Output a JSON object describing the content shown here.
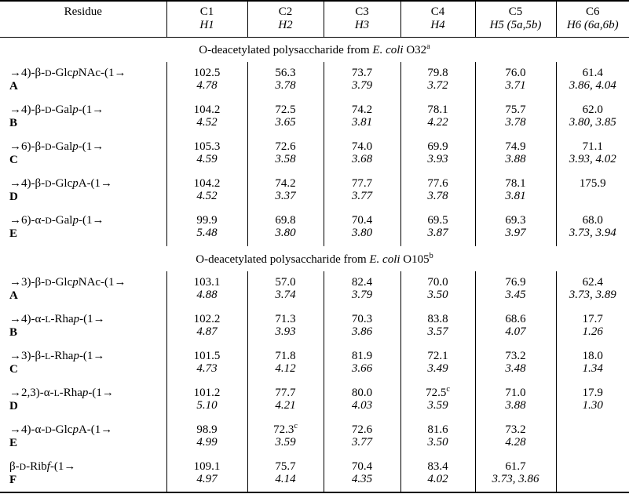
{
  "table": {
    "columns": [
      {
        "c": "Residue",
        "h": ""
      },
      {
        "c": "C1",
        "h": "H1"
      },
      {
        "c": "C2",
        "h": "H2"
      },
      {
        "c": "C3",
        "h": "H3"
      },
      {
        "c": "C4",
        "h": "H4"
      },
      {
        "c": "C5",
        "h": "H5 (5a,5b)"
      },
      {
        "c": "C6",
        "h": "H6 (6a,6b)"
      }
    ],
    "sections": [
      {
        "title": [
          {
            "t": "O-deacetylated polysaccharide from "
          },
          {
            "t": "E. coli",
            "style": "italic"
          },
          {
            "t": " O32"
          },
          {
            "t": "a",
            "style": "sup"
          }
        ],
        "rows": [
          {
            "residue": [
              {
                "t": "→4)-β-"
              },
              {
                "t": "D",
                "style": "smallcaps"
              },
              {
                "t": "-Glc"
              },
              {
                "t": "p",
                "style": "italic"
              },
              {
                "t": "NAc-(1→"
              }
            ],
            "label": "A",
            "cells": [
              {
                "c": "102.5",
                "h": "4.78"
              },
              {
                "c": "56.3",
                "h": "3.78"
              },
              {
                "c": "73.7",
                "h": "3.79"
              },
              {
                "c": "79.8",
                "h": "3.72"
              },
              {
                "c": "76.0",
                "h": "3.71"
              },
              {
                "c": "61.4",
                "h": "3.86, 4.04"
              }
            ]
          },
          {
            "residue": [
              {
                "t": "→4)-β-"
              },
              {
                "t": "D",
                "style": "smallcaps"
              },
              {
                "t": "-Gal"
              },
              {
                "t": "p",
                "style": "italic"
              },
              {
                "t": "-(1→"
              }
            ],
            "label": "B",
            "cells": [
              {
                "c": "104.2",
                "h": "4.52"
              },
              {
                "c": "72.5",
                "h": "3.65"
              },
              {
                "c": "74.2",
                "h": "3.81"
              },
              {
                "c": "78.1",
                "h": "4.22"
              },
              {
                "c": "75.7",
                "h": "3.78"
              },
              {
                "c": "62.0",
                "h": "3.80, 3.85"
              }
            ]
          },
          {
            "residue": [
              {
                "t": "→6)-β-"
              },
              {
                "t": "D",
                "style": "smallcaps"
              },
              {
                "t": "-Gal"
              },
              {
                "t": "p",
                "style": "italic"
              },
              {
                "t": "-(1→"
              }
            ],
            "label": "C",
            "cells": [
              {
                "c": "105.3",
                "h": "4.59"
              },
              {
                "c": "72.6",
                "h": "3.58"
              },
              {
                "c": "74.0",
                "h": "3.68"
              },
              {
                "c": "69.9",
                "h": "3.93"
              },
              {
                "c": "74.9",
                "h": "3.88"
              },
              {
                "c": "71.1",
                "h": "3.93, 4.02"
              }
            ]
          },
          {
            "residue": [
              {
                "t": "→4)-β-"
              },
              {
                "t": "D",
                "style": "smallcaps"
              },
              {
                "t": "-Glc"
              },
              {
                "t": "p",
                "style": "italic"
              },
              {
                "t": "A-(1→"
              }
            ],
            "label": "D",
            "cells": [
              {
                "c": "104.2",
                "h": "4.52"
              },
              {
                "c": "74.2",
                "h": "3.37"
              },
              {
                "c": "77.7",
                "h": "3.77"
              },
              {
                "c": "77.6",
                "h": "3.78"
              },
              {
                "c": "78.1",
                "h": "3.81"
              },
              {
                "c": "175.9",
                "h": ""
              }
            ]
          },
          {
            "residue": [
              {
                "t": "→6)-α-"
              },
              {
                "t": "D",
                "style": "smallcaps"
              },
              {
                "t": "-Gal"
              },
              {
                "t": "p",
                "style": "italic"
              },
              {
                "t": "-(1→"
              }
            ],
            "label": "E",
            "cells": [
              {
                "c": "99.9",
                "h": "5.48"
              },
              {
                "c": "69.8",
                "h": "3.80"
              },
              {
                "c": "70.4",
                "h": "3.80"
              },
              {
                "c": "69.5",
                "h": "3.87"
              },
              {
                "c": "69.3",
                "h": "3.97"
              },
              {
                "c": "68.0",
                "h": "3.73, 3.94"
              }
            ]
          }
        ]
      },
      {
        "title": [
          {
            "t": "O-deacetylated polysaccharide from "
          },
          {
            "t": "E. coli",
            "style": "italic"
          },
          {
            "t": " O105"
          },
          {
            "t": "b",
            "style": "sup"
          }
        ],
        "rows": [
          {
            "residue": [
              {
                "t": "→3)-β-"
              },
              {
                "t": "D",
                "style": "smallcaps"
              },
              {
                "t": "-Glc"
              },
              {
                "t": "p",
                "style": "italic"
              },
              {
                "t": "NAc-(1→"
              }
            ],
            "label": "A",
            "cells": [
              {
                "c": "103.1",
                "h": "4.88"
              },
              {
                "c": "57.0",
                "h": "3.74"
              },
              {
                "c": "82.4",
                "h": "3.79"
              },
              {
                "c": "70.0",
                "h": "3.50"
              },
              {
                "c": "76.9",
                "h": "3.45"
              },
              {
                "c": "62.4",
                "h": "3.73, 3.89"
              }
            ]
          },
          {
            "residue": [
              {
                "t": "→4)-α-"
              },
              {
                "t": "L",
                "style": "smallcaps"
              },
              {
                "t": "-Rha"
              },
              {
                "t": "p",
                "style": "italic"
              },
              {
                "t": "-(1→"
              }
            ],
            "label": "B",
            "cells": [
              {
                "c": "102.2",
                "h": "4.87"
              },
              {
                "c": "71.3",
                "h": "3.93"
              },
              {
                "c": "70.3",
                "h": "3.86"
              },
              {
                "c": "83.8",
                "h": "3.57"
              },
              {
                "c": "68.6",
                "h": "4.07"
              },
              {
                "c": "17.7",
                "h": "1.26"
              }
            ]
          },
          {
            "residue": [
              {
                "t": "→3)-β-"
              },
              {
                "t": "L",
                "style": "smallcaps"
              },
              {
                "t": "-Rha"
              },
              {
                "t": "p",
                "style": "italic"
              },
              {
                "t": "-(1→"
              }
            ],
            "label": "C",
            "cells": [
              {
                "c": "101.5",
                "h": "4.73"
              },
              {
                "c": "71.8",
                "h": "4.12"
              },
              {
                "c": "81.9",
                "h": "3.66"
              },
              {
                "c": "72.1",
                "h": "3.49"
              },
              {
                "c": "73.2",
                "h": "3.48"
              },
              {
                "c": "18.0",
                "h": "1.34"
              }
            ]
          },
          {
            "residue": [
              {
                "t": "→2,3)-α-"
              },
              {
                "t": "L",
                "style": "smallcaps"
              },
              {
                "t": "-Rha"
              },
              {
                "t": "p",
                "style": "italic"
              },
              {
                "t": "-(1→"
              }
            ],
            "label": "D",
            "cells": [
              {
                "c": "101.2",
                "h": "5.10"
              },
              {
                "c": "77.7",
                "h": "4.21"
              },
              {
                "c": "80.0",
                "h": "4.03"
              },
              {
                "c": "72.5",
                "sup": "c",
                "h": "3.59"
              },
              {
                "c": "71.0",
                "h": "3.88"
              },
              {
                "c": "17.9",
                "h": "1.30"
              }
            ]
          },
          {
            "residue": [
              {
                "t": "→4)-α-"
              },
              {
                "t": "D",
                "style": "smallcaps"
              },
              {
                "t": "-Glc"
              },
              {
                "t": "p",
                "style": "italic"
              },
              {
                "t": "A-(1→"
              }
            ],
            "label": "E",
            "cells": [
              {
                "c": "98.9",
                "h": "4.99"
              },
              {
                "c": "72.3",
                "sup": "c",
                "h": "3.59"
              },
              {
                "c": "72.6",
                "h": "3.77"
              },
              {
                "c": "81.6",
                "h": "3.50"
              },
              {
                "c": "73.2",
                "h": "4.28"
              },
              {
                "c": "",
                "h": ""
              }
            ]
          },
          {
            "residue": [
              {
                "t": "β-"
              },
              {
                "t": "D",
                "style": "smallcaps"
              },
              {
                "t": "-Rib"
              },
              {
                "t": "f",
                "style": "italic"
              },
              {
                "t": "-(1→"
              }
            ],
            "label": "F",
            "cells": [
              {
                "c": "109.1",
                "h": "4.97"
              },
              {
                "c": "75.7",
                "h": "4.14"
              },
              {
                "c": "70.4",
                "h": "4.35"
              },
              {
                "c": "83.4",
                "h": "4.02"
              },
              {
                "c": "61.7",
                "h": "3.73, 3.86"
              },
              {
                "c": "",
                "h": ""
              }
            ]
          }
        ]
      }
    ]
  }
}
